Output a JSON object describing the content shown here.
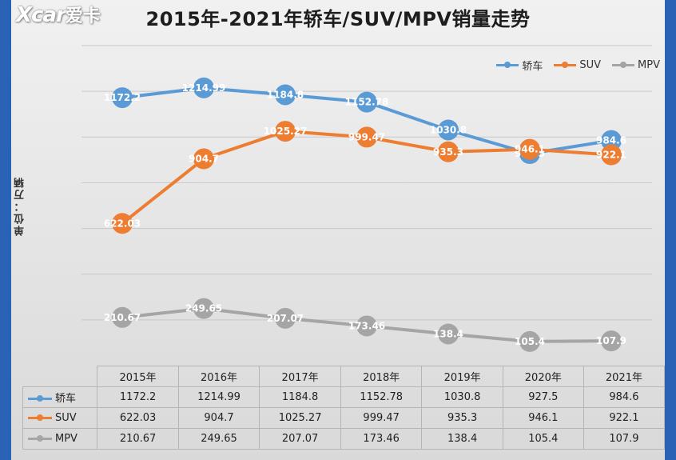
{
  "logo_text": "Xcar",
  "logo_sub": "爱卡",
  "title": "2015年-2021年轿车/SUV/MPV销量走势",
  "y_axis_label": "单位：万辆",
  "chart_data": {
    "type": "line",
    "title": "2015年-2021年轿车/SUV/MPV销量走势",
    "ylabel": "单位：万辆",
    "xlabel": "",
    "categories": [
      "2015年",
      "2016年",
      "2017年",
      "2018年",
      "2019年",
      "2020年",
      "2021年"
    ],
    "ylim": [
      0,
      1400
    ],
    "grid": true,
    "legend_position": "top-right",
    "series": [
      {
        "name": "轿车",
        "color": "#5b9bd5",
        "values": [
          1172.2,
          1214.99,
          1184.8,
          1152.78,
          1030.8,
          927.5,
          984.6
        ],
        "labels": [
          "1172.2",
          "1214.99",
          "1184.8",
          "1152.78",
          "1030.8",
          "927.5",
          "984.6"
        ]
      },
      {
        "name": "SUV",
        "color": "#ed7d31",
        "values": [
          622.03,
          904.7,
          1025.27,
          999.47,
          935.3,
          946.1,
          922.1
        ],
        "labels": [
          "622.03",
          "904.7",
          "1025.27",
          "999.47",
          "935.3",
          "946.1",
          "922.1"
        ]
      },
      {
        "name": "MPV",
        "color": "#a5a5a5",
        "values": [
          210.67,
          249.65,
          207.07,
          173.46,
          138.4,
          105.4,
          107.9
        ],
        "labels": [
          "210.67",
          "249.65",
          "207.07",
          "173.46",
          "138.4",
          "105.4",
          "107.9"
        ]
      }
    ]
  }
}
